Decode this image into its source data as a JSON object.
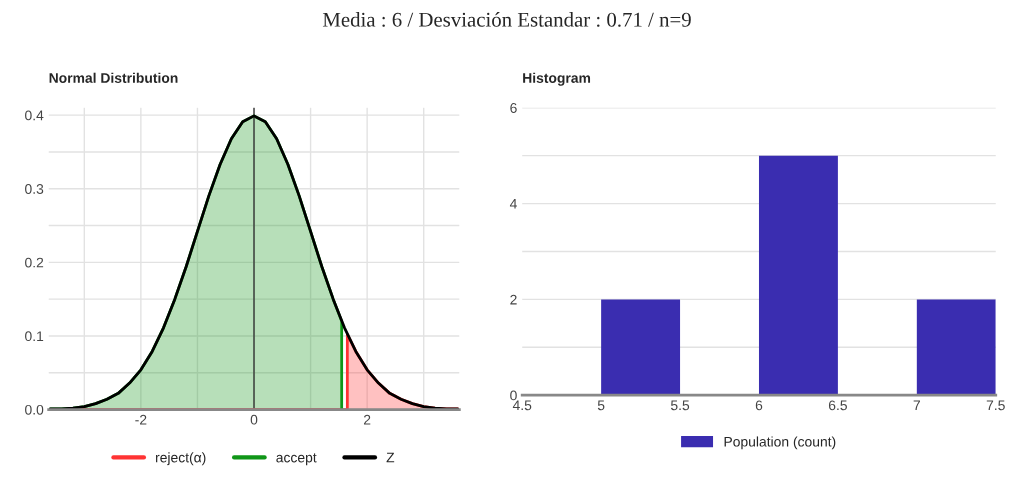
{
  "chart_data": [
    {
      "type": "area",
      "title": "Normal Distribution",
      "annotations": [
        "Media : 6 / Desviación Estandar : 0.71 / n=9"
      ],
      "xlim": [
        -3.63,
        3.63
      ],
      "xticks": [
        {
          "value": -3,
          "label": null
        },
        -2,
        {
          "value": -1,
          "label": null
        },
        0,
        {
          "value": 1,
          "label": null
        },
        2,
        {
          "value": 3,
          "label": null
        }
      ],
      "ylim": [
        0,
        0.41
      ],
      "yticks": [
        {
          "value": 0,
          "label": "0.0"
        },
        {
          "value": 0.05,
          "label": null
        },
        0.1,
        {
          "value": 0.15,
          "label": null
        },
        0.2,
        {
          "value": 0.25,
          "label": null
        },
        0.3,
        {
          "value": 0.35,
          "label": null
        },
        0.4
      ],
      "grid": true,
      "legend": "bottom",
      "ref_lines": [
        {
          "axis": "x",
          "value": 0,
          "color": "#333333"
        }
      ],
      "series": [
        {
          "name": "reject(α)",
          "type": "area",
          "color": "#ff3333",
          "x": [
            -3.6,
            1.65,
            1.65,
            1.8,
            2.0,
            2.2,
            2.4,
            2.6,
            2.8,
            3.0,
            3.2,
            3.4,
            3.6
          ],
          "values": [
            0,
            0,
            0.102,
            0.079,
            0.054,
            0.036,
            0.022,
            0.014,
            0.008,
            0.004,
            0.002,
            0.001,
            0.001
          ]
        },
        {
          "name": "accept",
          "type": "area",
          "color": "#109618",
          "x": [
            -3.6,
            -3.4,
            -3.2,
            -3.0,
            -2.8,
            -2.6,
            -2.4,
            -2.2,
            -2.0,
            -1.8,
            -1.6,
            -1.4,
            -1.2,
            -1.0,
            -0.8,
            -0.6,
            -0.4,
            -0.2,
            0,
            0.2,
            0.4,
            0.6,
            0.8,
            1.0,
            1.2,
            1.4,
            1.55,
            1.55
          ],
          "values": [
            0.001,
            0.001,
            0.002,
            0.004,
            0.008,
            0.014,
            0.022,
            0.036,
            0.054,
            0.079,
            0.111,
            0.15,
            0.194,
            0.242,
            0.29,
            0.333,
            0.368,
            0.391,
            0.399,
            0.391,
            0.368,
            0.333,
            0.29,
            0.242,
            0.194,
            0.15,
            0.12,
            0
          ]
        },
        {
          "name": "Z",
          "type": "line",
          "color": "#000000",
          "x": [
            -3.6,
            -3.4,
            -3.2,
            -3.0,
            -2.8,
            -2.6,
            -2.4,
            -2.2,
            -2.0,
            -1.8,
            -1.6,
            -1.4,
            -1.2,
            -1.0,
            -0.8,
            -0.6,
            -0.4,
            -0.2,
            0,
            0.2,
            0.4,
            0.6,
            0.8,
            1.0,
            1.2,
            1.4,
            1.6,
            1.8,
            2.0,
            2.2,
            2.4,
            2.6,
            2.8,
            3.0,
            3.2,
            3.4,
            3.6
          ],
          "values": [
            0.001,
            0.001,
            0.002,
            0.004,
            0.008,
            0.014,
            0.022,
            0.036,
            0.054,
            0.079,
            0.111,
            0.15,
            0.194,
            0.242,
            0.29,
            0.333,
            0.368,
            0.391,
            0.399,
            0.391,
            0.368,
            0.333,
            0.29,
            0.242,
            0.194,
            0.15,
            0.111,
            0.079,
            0.054,
            0.036,
            0.022,
            0.014,
            0.008,
            0.004,
            0.002,
            0.001,
            0.001
          ]
        }
      ]
    },
    {
      "type": "histogram",
      "title": "Histogram",
      "bins": [
        4.5,
        5,
        5.5,
        6,
        6.5,
        7,
        7.5
      ],
      "series": [
        {
          "name": "Population (count)",
          "color": "#3a2db0",
          "values": [
            0,
            2,
            0,
            5,
            0,
            2
          ]
        }
      ],
      "xlim": [
        4.5,
        7.5
      ],
      "xticks": [
        4.5,
        5,
        5.5,
        6,
        6.5,
        7,
        7.5
      ],
      "ylim": [
        0,
        6
      ],
      "yticks": [
        0,
        {
          "value": 1,
          "label": null
        },
        2,
        {
          "value": 3,
          "label": null
        },
        4,
        {
          "value": 5,
          "label": null
        },
        6
      ],
      "grid": "y",
      "legend": "bottom"
    }
  ]
}
